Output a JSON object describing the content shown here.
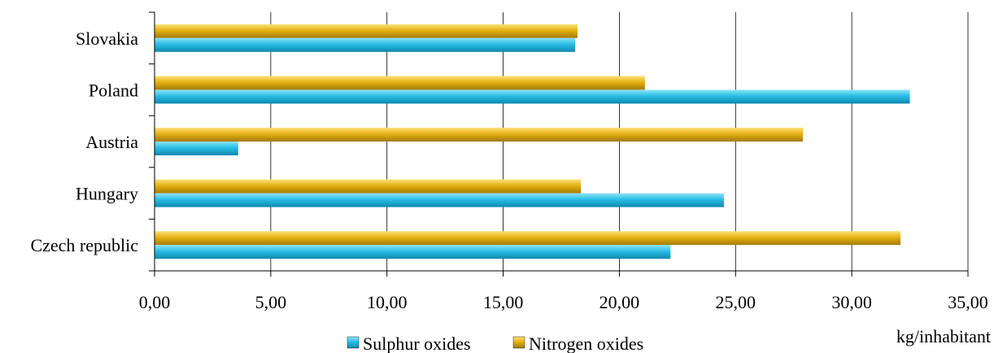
{
  "chart_data": {
    "type": "bar",
    "orientation": "horizontal",
    "categories": [
      "Czech republic",
      "Hungary",
      "Austria",
      "Poland",
      "Slovakia"
    ],
    "series": [
      {
        "name": "Sulphur oxides",
        "color": "#1eb3dd",
        "values": [
          22.2,
          24.5,
          3.6,
          32.5,
          18.1
        ]
      },
      {
        "name": "Nitrogen oxides",
        "color": "#e0ac0b",
        "values": [
          32.1,
          18.35,
          27.9,
          21.1,
          18.2
        ]
      }
    ],
    "xlabel": "kg/inhabitant",
    "xlim": [
      0,
      35
    ],
    "xticks": [
      "0,00",
      "5,00",
      "10,00",
      "15,00",
      "20,00",
      "25,00",
      "30,00",
      "35,00"
    ],
    "grid": "vertical",
    "legend_position": "bottom"
  }
}
